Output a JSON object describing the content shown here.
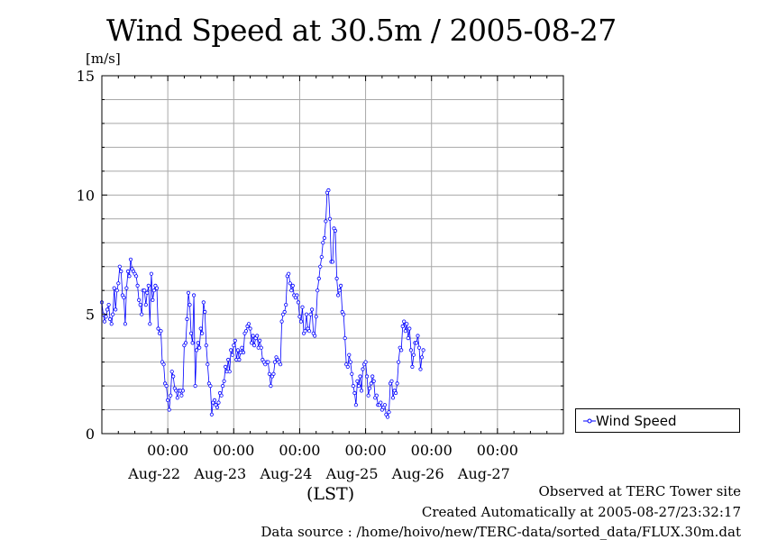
{
  "title": "Wind Speed at 30.5m / 2005-08-27",
  "unit_label": "[m/s]",
  "x_axis_label": "(LST)",
  "footer": {
    "line1": "Observed at TERC Tower site",
    "line2": "Created Automatically at 2005-08-27/23:32:17",
    "line3": "Data source : /home/hoivo/new/TERC-data/sorted_data/FLUX.30m.dat"
  },
  "legend": {
    "label": "Wind Speed"
  },
  "chart_data": {
    "type": "line",
    "title": "Wind Speed at 30.5m / 2005-08-27",
    "ylabel": "[m/s]",
    "xlabel": "(LST)",
    "ylim": [
      0,
      15
    ],
    "yticks": [
      0,
      5,
      10,
      15
    ],
    "x_tick_time_label": "00:00",
    "x_tick_dates": [
      "Aug-22",
      "Aug-23",
      "Aug-24",
      "Aug-25",
      "Aug-26",
      "Aug-27"
    ],
    "grid": true,
    "legend_position": "right",
    "series": [
      {
        "name": "Wind Speed",
        "color": "#0000ff",
        "x_start": "2005-08-21 00:00",
        "x_step_hours": 0.5,
        "values": [
          5.5,
          5.0,
          4.7,
          4.9,
          5.2,
          5.4,
          4.8,
          4.6,
          5.0,
          6.1,
          5.2,
          6.0,
          6.3,
          7.0,
          6.8,
          5.8,
          5.7,
          4.6,
          6.1,
          6.8,
          6.6,
          7.3,
          6.9,
          6.8,
          6.7,
          6.6,
          6.2,
          5.6,
          5.4,
          5.0,
          6.0,
          6.0,
          5.4,
          5.9,
          6.2,
          4.6,
          6.7,
          5.6,
          6.0,
          6.2,
          6.1,
          4.4,
          4.2,
          4.3,
          3.0,
          2.9,
          2.1,
          2.0,
          1.4,
          1.0,
          1.6,
          2.6,
          2.4,
          1.9,
          1.8,
          1.5,
          1.8,
          1.8,
          1.6,
          1.8,
          3.7,
          3.8,
          4.8,
          5.9,
          5.4,
          4.2,
          3.8,
          5.8,
          2.0,
          3.5,
          3.8,
          3.6,
          4.4,
          4.2,
          5.5,
          5.1,
          3.7,
          2.9,
          2.1,
          2.0,
          0.8,
          1.3,
          1.4,
          1.2,
          1.1,
          1.3,
          1.7,
          1.6,
          2.0,
          2.2,
          2.8,
          2.6,
          3.1,
          2.6,
          3.5,
          3.3,
          3.7,
          3.9,
          3.1,
          3.5,
          3.1,
          3.4,
          3.6,
          3.4,
          4.2,
          4.3,
          4.5,
          4.6,
          4.4,
          3.8,
          4.1,
          3.7,
          4.0,
          4.1,
          3.6,
          3.9,
          3.6,
          3.1,
          3.0,
          2.9,
          3.0,
          3.0,
          2.5,
          2.0,
          2.4,
          2.5,
          3.0,
          3.2,
          3.1,
          3.0,
          2.9,
          4.7,
          5.0,
          5.1,
          5.4,
          6.6,
          6.7,
          6.3,
          6.0,
          6.2,
          5.8,
          5.7,
          5.8,
          5.5,
          4.9,
          4.7,
          5.3,
          4.2,
          4.3,
          5.0,
          4.4,
          4.3,
          5.0,
          5.2,
          4.2,
          4.1,
          4.9,
          6.0,
          6.5,
          7.0,
          7.4,
          8.0,
          8.2,
          8.9,
          10.1,
          10.2,
          9.0,
          7.2,
          7.2,
          8.6,
          8.5,
          6.5,
          5.8,
          6.0,
          6.2,
          5.1,
          5.0,
          4.0,
          2.9,
          2.8,
          3.3,
          3.0,
          2.5,
          2.0,
          1.7,
          1.2,
          2.2,
          2.0,
          2.4,
          1.8,
          2.7,
          2.9,
          3.0,
          2.4,
          1.6,
          1.9,
          2.1,
          2.4,
          2.2,
          1.5,
          1.6,
          1.2,
          1.2,
          1.3,
          1.0,
          1.1,
          1.2,
          0.8,
          0.7,
          0.9,
          2.1,
          2.2,
          1.5,
          1.8,
          1.7,
          2.1,
          3.0,
          3.6,
          3.5,
          4.5,
          4.7,
          4.3,
          4.6,
          4.0,
          4.4,
          3.5,
          2.8,
          3.3,
          3.8,
          3.8,
          4.1,
          3.6,
          2.7,
          3.2,
          3.5
        ]
      }
    ]
  }
}
